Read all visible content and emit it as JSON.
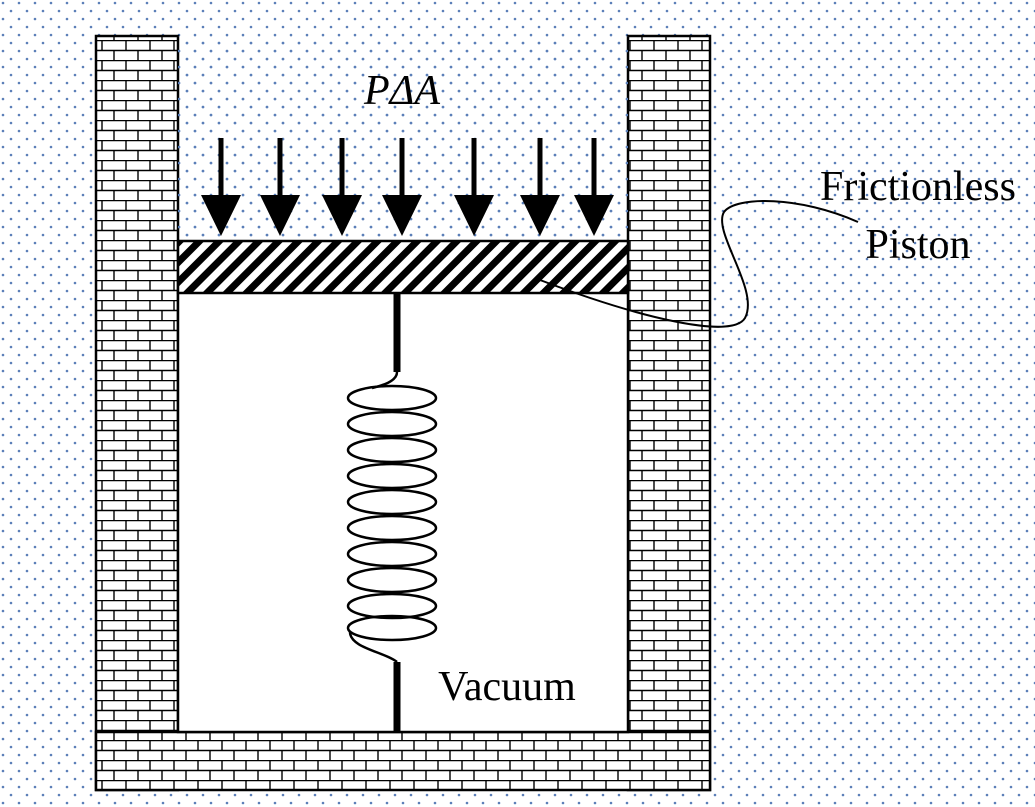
{
  "labels": {
    "force": "PΔA",
    "piston_line1": "Frictionless",
    "piston_line2": "Piston",
    "chamber": "Vacuum"
  },
  "colors": {
    "background": "#ffffff",
    "dot_pattern": "#5b7fb8",
    "ink": "#000000",
    "chamber_fill": "#ffffff"
  }
}
